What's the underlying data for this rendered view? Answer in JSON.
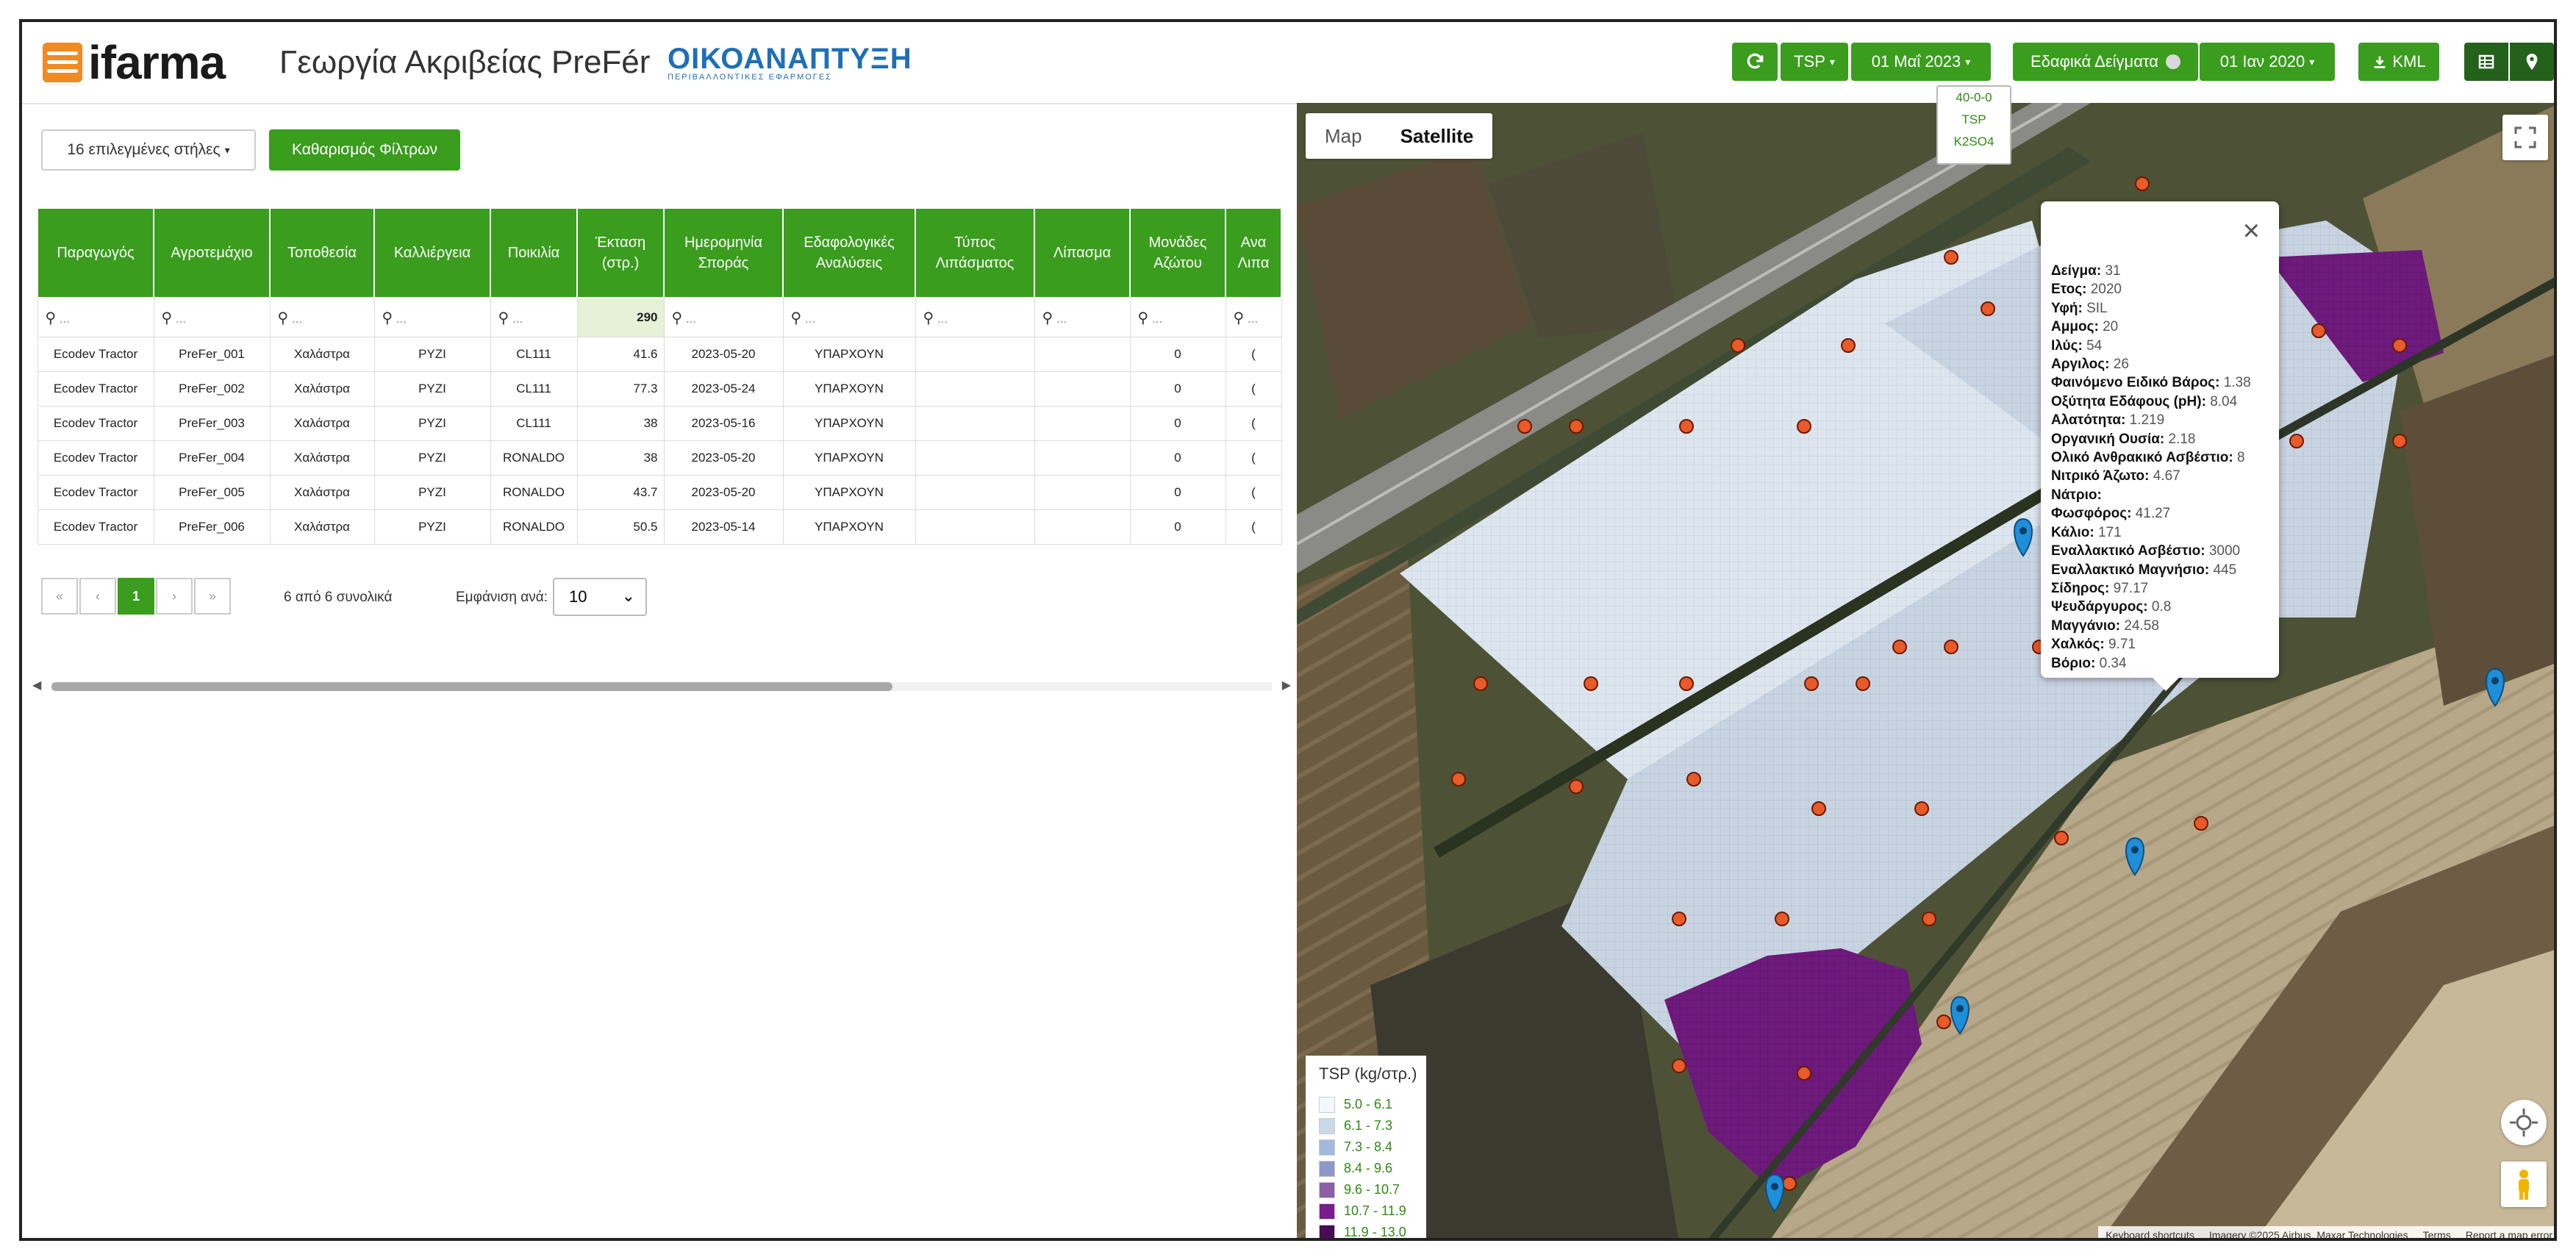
{
  "header": {
    "logo": "ifarma",
    "title": "Γεωργία Ακριβείας PreFér",
    "partner_name": "ΟΙΚΟΑΝΑΠΤΥΞΗ",
    "partner_subtitle": "ΠΕΡΙΒΑΛΛΟΝΤΙΚΕΣ ΕΦΑΡΜΟΓΕΣ",
    "refresh_icon": "refresh-icon",
    "layer_select": "TSP",
    "layer_date": "01 Μαΐ 2023",
    "soil_samples_label": "Εδαφικά Δείγματα",
    "sample_date": "01 Ιαν 2020",
    "kml_label": "KML",
    "table_icon": "table-icon",
    "pin_icon": "map-pin-icon",
    "layer_menu": [
      "40-0-0",
      "TSP",
      "K2SO4"
    ]
  },
  "toolbar": {
    "columns_button": "16 επιλεγμένες στήλες",
    "clear_filters": "Καθαρισμός Φίλτρων"
  },
  "table": {
    "columns": [
      "Παραγωγός",
      "Αγροτεμάχιο",
      "Τοποθεσία",
      "Καλλιέργεια",
      "Ποικιλία",
      "Έκταση (στρ.)",
      "Ημερομηνία Σποράς",
      "Εδαφολογικές Αναλύσεις",
      "Τύπος Λιπάσματος",
      "Λίπασμα",
      "Μονάδες Αζώτου",
      "Ανα Λιπα"
    ],
    "filter_placeholder": "...",
    "area_total": "290",
    "rows": [
      [
        "Ecodev Tractor",
        "PreFer_001",
        "Χαλάστρα",
        "ΡΥΖΙ",
        "CL111",
        "41.6",
        "2023-05-20",
        "ΥΠΑΡΧΟΥΝ",
        "",
        "",
        "0",
        "("
      ],
      [
        "Ecodev Tractor",
        "PreFer_002",
        "Χαλάστρα",
        "ΡΥΖΙ",
        "CL111",
        "77.3",
        "2023-05-24",
        "ΥΠΑΡΧΟΥΝ",
        "",
        "",
        "0",
        "("
      ],
      [
        "Ecodev Tractor",
        "PreFer_003",
        "Χαλάστρα",
        "ΡΥΖΙ",
        "CL111",
        "38",
        "2023-05-16",
        "ΥΠΑΡΧΟΥΝ",
        "",
        "",
        "0",
        "("
      ],
      [
        "Ecodev Tractor",
        "PreFer_004",
        "Χαλάστρα",
        "ΡΥΖΙ",
        "RONALDO",
        "38",
        "2023-05-20",
        "ΥΠΑΡΧΟΥΝ",
        "",
        "",
        "0",
        "("
      ],
      [
        "Ecodev Tractor",
        "PreFer_005",
        "Χαλάστρα",
        "ΡΥΖΙ",
        "RONALDO",
        "43.7",
        "2023-05-20",
        "ΥΠΑΡΧΟΥΝ",
        "",
        "",
        "0",
        "("
      ],
      [
        "Ecodev Tractor",
        "PreFer_006",
        "Χαλάστρα",
        "ΡΥΖΙ",
        "RONALDO",
        "50.5",
        "2023-05-14",
        "ΥΠΑΡΧΟΥΝ",
        "",
        "",
        "0",
        "("
      ]
    ]
  },
  "pagination": {
    "first": "«",
    "prev": "‹",
    "current": "1",
    "next": "›",
    "last": "»",
    "summary": "6 από 6 συνολικά",
    "show_per_label": "Εμφάνιση ανά:",
    "per_page": "10"
  },
  "map": {
    "type_map": "Map",
    "type_satellite": "Satellite",
    "popup": [
      {
        "k": "Δείγμα:",
        "v": "31"
      },
      {
        "k": "Ετος:",
        "v": "2020"
      },
      {
        "k": "Υφή:",
        "v": "SIL"
      },
      {
        "k": "Αμμος:",
        "v": "20"
      },
      {
        "k": "Ιλύς:",
        "v": "54"
      },
      {
        "k": "Αργιλος:",
        "v": "26"
      },
      {
        "k": "Φαινόμενο Ειδικό Βάρος:",
        "v": "1.38"
      },
      {
        "k": "Οξύτητα Εδάφους (pH):",
        "v": "8.04"
      },
      {
        "k": "Αλατότητα:",
        "v": "1.219"
      },
      {
        "k": "Οργανική Ουσία:",
        "v": "2.18"
      },
      {
        "k": "Ολικό Ανθρακικό Ασβέστιο:",
        "v": "8"
      },
      {
        "k": "Νιτρικό Άζωτο:",
        "v": "4.67"
      },
      {
        "k": "Νάτριο:",
        "v": ""
      },
      {
        "k": "Φωσφόρος:",
        "v": "41.27"
      },
      {
        "k": "Κάλιο:",
        "v": "171"
      },
      {
        "k": "Εναλλακτικό Ασβέστιο:",
        "v": "3000"
      },
      {
        "k": "Εναλλακτικό Μαγνήσιο:",
        "v": "445"
      },
      {
        "k": "Σίδηρος:",
        "v": "97.17"
      },
      {
        "k": "Ψευδάργυρος:",
        "v": "0.8"
      },
      {
        "k": "Μαγγάνιο:",
        "v": "24.58"
      },
      {
        "k": "Χαλκός:",
        "v": "9.71"
      },
      {
        "k": "Βόριο:",
        "v": "0.34"
      }
    ],
    "legend_title": "TSP (kg/στρ.)",
    "legend": [
      {
        "label": "5.0 - 6.1",
        "color": "#f4f8fc"
      },
      {
        "label": "6.1 - 7.3",
        "color": "#c9d9ea"
      },
      {
        "label": "7.3 - 8.4",
        "color": "#9fbadb"
      },
      {
        "label": "8.4 - 9.6",
        "color": "#8c98c8"
      },
      {
        "label": "9.6 - 10.7",
        "color": "#8c5fa8"
      },
      {
        "label": "10.7 - 11.9",
        "color": "#7a1c8a"
      },
      {
        "label": "11.9 - 13.0",
        "color": "#4a0a58"
      }
    ],
    "attribution": [
      "Keyboard shortcuts",
      "Imagery ©2025 Airbus, Maxar Technologies",
      "Terms",
      "Report a map error"
    ]
  }
}
